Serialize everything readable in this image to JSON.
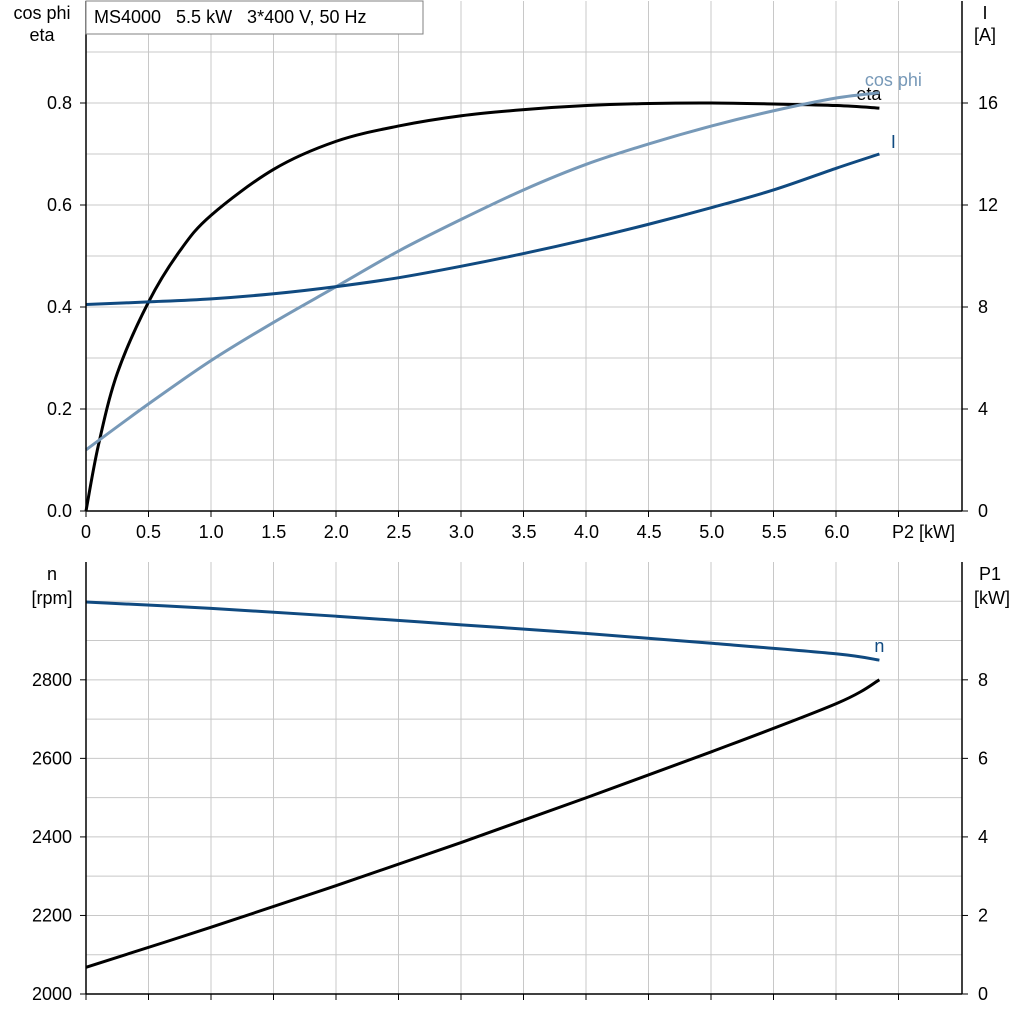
{
  "chart_data": [
    {
      "type": "line",
      "title": "MS4000   5.5 kW   3*400 V, 50 Hz",
      "left_axis_label": [
        "cos phi",
        "eta"
      ],
      "right_axis_label": [
        "I",
        "[A]"
      ],
      "x_axis_label": "P2 [kW]",
      "xlim": [
        0,
        7.0
      ],
      "x_ticks": [
        "0",
        "0.5",
        "1.0",
        "1.5",
        "2.0",
        "2.5",
        "3.0",
        "3.5",
        "4.0",
        "4.5",
        "5.0",
        "5.5",
        "6.0"
      ],
      "left_ylim": [
        0,
        1.0
      ],
      "left_ticks": [
        "0.0",
        "0.2",
        "0.4",
        "0.6",
        "0.8"
      ],
      "right_ylim": [
        0,
        20
      ],
      "right_ticks": [
        "0",
        "4",
        "8",
        "12",
        "16"
      ],
      "grid": true,
      "series": [
        {
          "name": "eta",
          "axis": "left",
          "color": "#000000",
          "x": [
            0,
            0.1,
            0.25,
            0.5,
            0.75,
            1.0,
            1.5,
            2.0,
            2.5,
            3.0,
            3.5,
            4.0,
            4.5,
            5.0,
            5.5,
            6.0,
            6.34
          ],
          "values": [
            0.0,
            0.13,
            0.27,
            0.41,
            0.51,
            0.58,
            0.67,
            0.725,
            0.755,
            0.775,
            0.787,
            0.795,
            0.799,
            0.8,
            0.798,
            0.795,
            0.79
          ]
        },
        {
          "name": "cos phi",
          "axis": "left",
          "color": "#7799b8",
          "x": [
            0,
            0.5,
            1.0,
            1.5,
            2.0,
            2.5,
            3.0,
            3.5,
            4.0,
            4.5,
            5.0,
            5.5,
            6.0,
            6.34
          ],
          "values": [
            0.12,
            0.21,
            0.295,
            0.37,
            0.44,
            0.51,
            0.572,
            0.63,
            0.68,
            0.72,
            0.755,
            0.785,
            0.81,
            0.82
          ]
        },
        {
          "name": "I",
          "axis": "right",
          "color": "#104a80",
          "x": [
            0,
            0.5,
            1.0,
            1.5,
            2.0,
            2.5,
            3.0,
            3.5,
            4.0,
            4.5,
            5.0,
            5.5,
            6.0,
            6.34
          ],
          "values": [
            8.1,
            8.2,
            8.32,
            8.52,
            8.8,
            9.15,
            9.6,
            10.1,
            10.65,
            11.25,
            11.9,
            12.6,
            13.45,
            14.0
          ]
        }
      ]
    },
    {
      "type": "line",
      "left_axis_label": [
        "n",
        "[rpm]"
      ],
      "right_axis_label": [
        "P1",
        "[kW]"
      ],
      "left_ylim": [
        2000,
        3100
      ],
      "left_ticks": [
        "2000",
        "2200",
        "2400",
        "2600",
        "2800"
      ],
      "right_ylim": [
        0,
        11
      ],
      "right_ticks": [
        "0",
        "2",
        "4",
        "6",
        "8"
      ],
      "xlim": [
        0,
        7.0
      ],
      "grid": true,
      "series": [
        {
          "name": "n",
          "axis": "left",
          "color": "#104a80",
          "x": [
            0,
            1.0,
            2.0,
            3.0,
            4.0,
            5.0,
            6.0,
            6.34
          ],
          "values": [
            2998,
            2982,
            2962,
            2940,
            2918,
            2893,
            2866,
            2850
          ]
        },
        {
          "axis": "right",
          "color": "#000000",
          "x": [
            0,
            1.0,
            2.0,
            3.0,
            4.0,
            5.0,
            6.0,
            6.34
          ],
          "values": [
            0.68,
            1.7,
            2.76,
            3.86,
            5.0,
            6.17,
            7.4,
            8.0
          ]
        }
      ]
    }
  ]
}
